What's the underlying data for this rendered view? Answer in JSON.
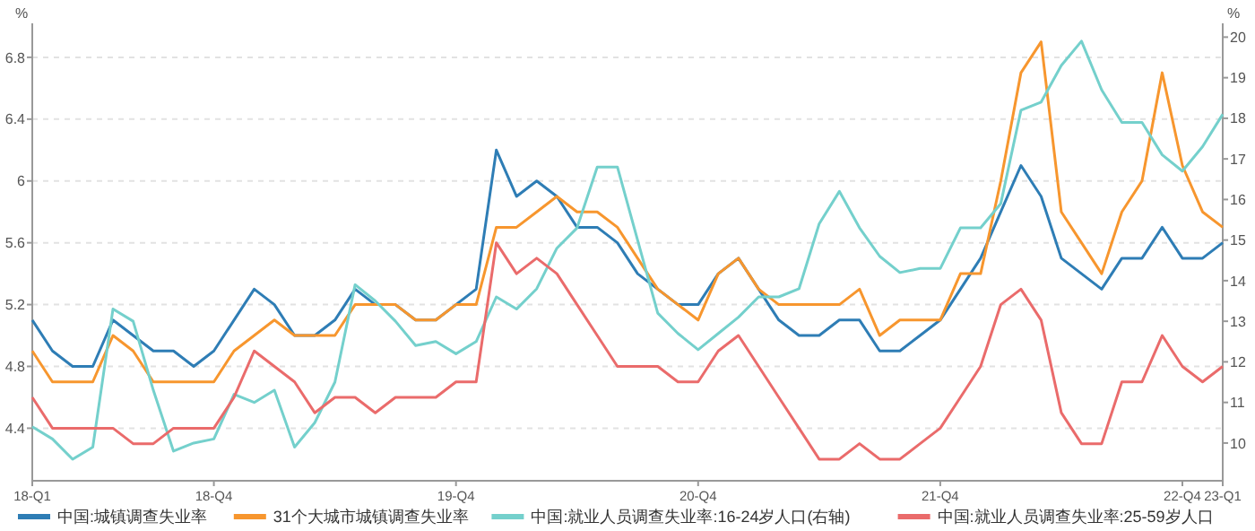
{
  "chart_data": {
    "type": "line",
    "ylabel": "%",
    "y2label": "%",
    "categories": [
      "18-Q1",
      null,
      null,
      null,
      null,
      null,
      null,
      null,
      null,
      "18-Q4",
      null,
      null,
      null,
      null,
      null,
      null,
      null,
      null,
      null,
      null,
      null,
      "19-Q4",
      null,
      null,
      null,
      null,
      null,
      null,
      null,
      null,
      null,
      null,
      null,
      "20-Q4",
      null,
      null,
      null,
      null,
      null,
      null,
      null,
      null,
      null,
      null,
      null,
      "21-Q4",
      null,
      null,
      null,
      null,
      null,
      null,
      null,
      null,
      null,
      null,
      null,
      "22-Q4",
      null,
      "23-Q1"
    ],
    "series": [
      {
        "name": "中国:城镇调查失业率",
        "color": "#2e7db5",
        "values": [
          5.1,
          4.9,
          4.8,
          4.8,
          5.1,
          5.0,
          4.9,
          4.9,
          4.8,
          4.9,
          5.1,
          5.3,
          5.2,
          5.0,
          5.0,
          5.1,
          5.3,
          5.2,
          5.2,
          5.1,
          5.1,
          5.2,
          5.3,
          6.2,
          5.9,
          6.0,
          5.9,
          5.7,
          5.7,
          5.6,
          5.4,
          5.3,
          5.2,
          5.2,
          5.4,
          5.5,
          5.3,
          5.1,
          5.0,
          5.0,
          5.1,
          5.1,
          4.9,
          4.9,
          5.0,
          5.1,
          5.3,
          5.5,
          5.8,
          6.1,
          5.9,
          5.5,
          5.4,
          5.3,
          5.5,
          5.5,
          5.7,
          5.5,
          5.5,
          5.6
        ]
      },
      {
        "name": "31个大城市城镇调查失业率",
        "color": "#f7962e",
        "values": [
          4.9,
          4.7,
          4.7,
          4.7,
          5.0,
          4.9,
          4.7,
          4.7,
          4.7,
          4.7,
          4.9,
          5.0,
          5.1,
          5.0,
          5.0,
          5.0,
          5.2,
          5.2,
          5.2,
          5.1,
          5.1,
          5.2,
          5.2,
          5.7,
          5.7,
          5.8,
          5.9,
          5.8,
          5.8,
          5.7,
          5.5,
          5.3,
          5.2,
          5.1,
          5.4,
          5.5,
          5.3,
          5.2,
          5.2,
          5.2,
          5.2,
          5.3,
          5.0,
          5.1,
          5.1,
          5.1,
          5.4,
          5.4,
          6.0,
          6.7,
          6.9,
          5.8,
          5.6,
          5.4,
          5.8,
          6.0,
          6.7,
          6.1,
          5.8,
          5.7
        ]
      },
      {
        "name": "中国:就业人员调查失业率:16-24岁人口(右轴)",
        "color": "#74d0cc",
        "axis": "y2",
        "values": [
          10.4,
          10.1,
          9.6,
          9.9,
          13.3,
          13.0,
          11.3,
          9.8,
          10.0,
          10.1,
          11.2,
          11.0,
          11.3,
          9.9,
          10.5,
          11.5,
          13.9,
          13.5,
          13.0,
          12.4,
          12.5,
          12.2,
          12.5,
          13.6,
          13.3,
          13.8,
          14.8,
          15.3,
          16.8,
          16.8,
          15.0,
          13.2,
          12.7,
          12.3,
          12.7,
          13.1,
          13.6,
          13.6,
          13.8,
          15.4,
          16.2,
          15.3,
          14.6,
          14.2,
          14.3,
          14.3,
          15.3,
          15.3,
          15.9,
          18.2,
          18.4,
          19.3,
          19.9,
          18.7,
          17.9,
          17.9,
          17.1,
          16.7,
          17.3,
          18.1
        ]
      },
      {
        "name": "中国:就业人员调查失业率:25-59岁人口",
        "color": "#ea6b6b",
        "values": [
          4.6,
          4.4,
          4.4,
          4.4,
          4.4,
          4.3,
          4.3,
          4.4,
          4.4,
          4.4,
          4.6,
          4.9,
          4.8,
          4.7,
          4.5,
          4.6,
          4.6,
          4.5,
          4.6,
          4.6,
          4.6,
          4.7,
          4.7,
          5.6,
          5.4,
          5.5,
          5.4,
          5.2,
          5.0,
          4.8,
          4.8,
          4.8,
          4.7,
          4.7,
          4.9,
          5.0,
          4.8,
          4.6,
          4.4,
          4.2,
          4.2,
          4.3,
          4.2,
          4.2,
          4.3,
          4.4,
          4.6,
          4.8,
          5.2,
          5.3,
          5.1,
          4.5,
          4.3,
          4.3,
          4.7,
          4.7,
          5.0,
          4.8,
          4.7,
          4.8
        ]
      }
    ],
    "ylim": [
      4.06,
      7.02
    ],
    "yticks": [
      4.4,
      4.8,
      5.2,
      5.6,
      6,
      6.4,
      6.8
    ],
    "y2lim": [
      9.07,
      20.34
    ],
    "y2ticks": [
      10,
      11,
      12,
      13,
      14,
      15,
      16,
      17,
      18,
      19,
      20
    ],
    "grid": "y",
    "legend": "bottom"
  }
}
